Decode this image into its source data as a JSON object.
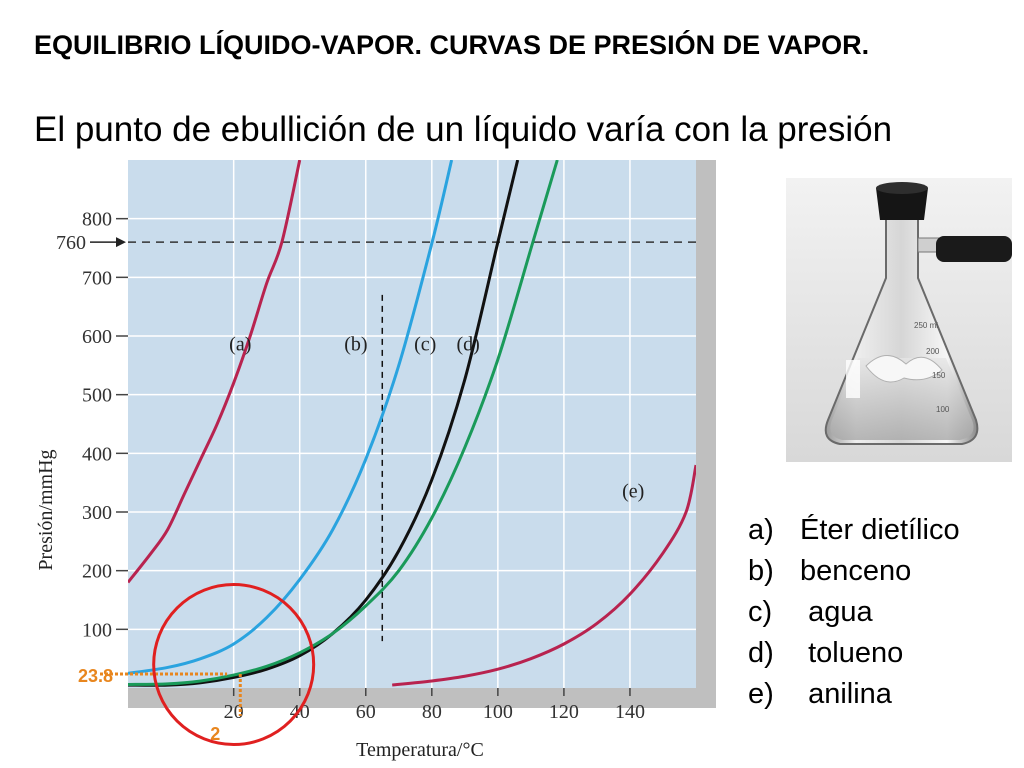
{
  "slide": {
    "title": "EQUILIBRIO LÍQUIDO-VAPOR. CURVAS DE PRESIÓN DE VAPOR.",
    "subtitle": "El punto de ebullición de un líquido varía con la presión"
  },
  "legend": [
    {
      "letter": "a)",
      "text": "Éter dietílico"
    },
    {
      "letter": "b)",
      "text": "benceno"
    },
    {
      "letter": "c)",
      "text": "agua"
    },
    {
      "letter": "d)",
      "text": "tolueno"
    },
    {
      "letter": "e)",
      "text": "anilina"
    }
  ],
  "photo": {
    "subject": "erlenmeyer-flask",
    "flask_marks": [
      "250 ml",
      "200",
      "150",
      "100"
    ]
  },
  "colors": {
    "plot_background": "#c9dcec",
    "gridline": "#ffffff",
    "curve_a": "#b8234f",
    "curve_b": "#2aa3df",
    "curve_c": "#111111",
    "curve_d": "#1a9a5a",
    "curve_e": "#b8234f",
    "annotation": "#e8861e",
    "circle": "#e02020"
  },
  "chart_data": {
    "type": "line",
    "xlabel": "Temperatura/°C",
    "ylabel": "Presión/mmHg",
    "xlim": [
      -12,
      160
    ],
    "ylim": [
      0,
      900
    ],
    "xticks": [
      20,
      40,
      60,
      80,
      100,
      120,
      140
    ],
    "yticks": [
      100,
      200,
      300,
      400,
      500,
      600,
      700,
      800
    ],
    "special_ytick": {
      "value": 760,
      "label": "760"
    },
    "grid": true,
    "reference_line": {
      "y": 760,
      "style": "dashed"
    },
    "vertical_marker": {
      "x": 65,
      "y_range": [
        80,
        670
      ],
      "style": "dashed"
    },
    "series": [
      {
        "name": "(a)",
        "key": "a",
        "label_pos": {
          "x": 22,
          "y": 575
        },
        "points": [
          [
            -12,
            180
          ],
          [
            -5,
            230
          ],
          [
            0,
            270
          ],
          [
            5,
            330
          ],
          [
            10,
            390
          ],
          [
            15,
            450
          ],
          [
            20,
            520
          ],
          [
            25,
            600
          ],
          [
            30,
            690
          ],
          [
            34.6,
            760
          ],
          [
            40,
            900
          ]
        ]
      },
      {
        "name": "(b)",
        "key": "b",
        "label_pos": {
          "x": 57,
          "y": 575
        },
        "points": [
          [
            -12,
            25
          ],
          [
            0,
            35
          ],
          [
            10,
            50
          ],
          [
            20,
            75
          ],
          [
            30,
            120
          ],
          [
            40,
            185
          ],
          [
            50,
            270
          ],
          [
            60,
            390
          ],
          [
            70,
            550
          ],
          [
            80.1,
            760
          ],
          [
            86,
            900
          ]
        ]
      },
      {
        "name": "(c)",
        "key": "c",
        "label_pos": {
          "x": 78,
          "y": 575
        },
        "points": [
          [
            -12,
            5
          ],
          [
            0,
            5
          ],
          [
            10,
            9
          ],
          [
            20,
            18
          ],
          [
            30,
            32
          ],
          [
            40,
            55
          ],
          [
            50,
            93
          ],
          [
            60,
            150
          ],
          [
            70,
            234
          ],
          [
            80,
            355
          ],
          [
            90,
            526
          ],
          [
            100,
            760
          ],
          [
            106,
            900
          ]
        ]
      },
      {
        "name": "(d)",
        "key": "d",
        "label_pos": {
          "x": 91,
          "y": 575
        },
        "points": [
          [
            -12,
            6
          ],
          [
            0,
            7
          ],
          [
            10,
            12
          ],
          [
            20,
            22
          ],
          [
            30,
            37
          ],
          [
            40,
            60
          ],
          [
            50,
            93
          ],
          [
            60,
            140
          ],
          [
            70,
            200
          ],
          [
            80,
            290
          ],
          [
            90,
            410
          ],
          [
            100,
            560
          ],
          [
            110.6,
            760
          ],
          [
            118,
            900
          ]
        ]
      },
      {
        "name": "(e)",
        "key": "e",
        "label_pos": {
          "x": 141,
          "y": 325
        },
        "points": [
          [
            68,
            5
          ],
          [
            80,
            12
          ],
          [
            90,
            20
          ],
          [
            100,
            32
          ],
          [
            110,
            50
          ],
          [
            120,
            75
          ],
          [
            130,
            110
          ],
          [
            140,
            160
          ],
          [
            150,
            230
          ],
          [
            157,
            300
          ],
          [
            160,
            380
          ]
        ]
      }
    ],
    "annotations": [
      {
        "text": "23.8",
        "value": 23.8,
        "axis": "y",
        "at_x": 18
      },
      {
        "text": "2",
        "value": 2,
        "axis": "x",
        "at_x": 22
      }
    ],
    "highlight_circle": {
      "center": [
        20,
        40
      ],
      "label": ""
    }
  }
}
